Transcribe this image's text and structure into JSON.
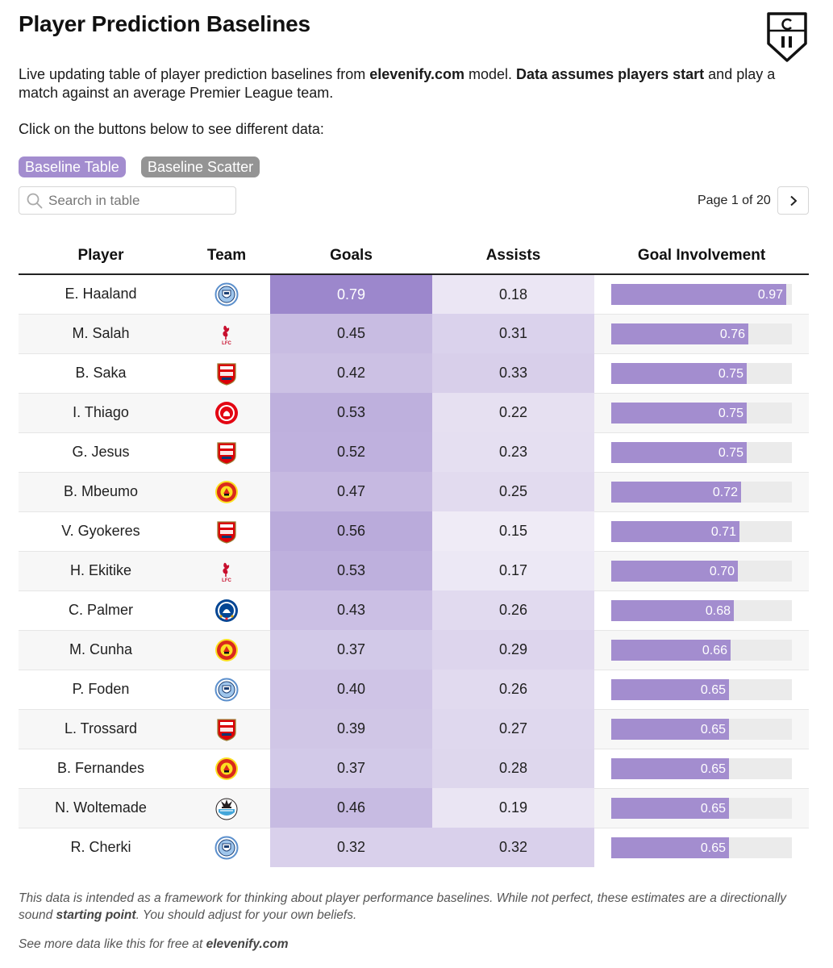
{
  "header": {
    "title": "Player Prediction Baselines",
    "description_1": "Live updating table of player prediction baselines from ",
    "description_site": "elevenify.com",
    "description_2": " model. ",
    "description_bold": "Data assumes players start",
    "description_3": " and play a match against an average Premier League team.",
    "prompt": "Click on the buttons below to see different data:"
  },
  "buttons": {
    "table_label": "Baseline Table",
    "scatter_label": "Baseline Scatter"
  },
  "search": {
    "placeholder": "Search in table"
  },
  "pagination": {
    "label": "Page 1 of 20"
  },
  "colors": {
    "accent": "#a38dcf",
    "scatter_button": "#949494",
    "heat_low": "#efebf6",
    "heat_high": "#9c87cc"
  },
  "columns": [
    "Player",
    "Team",
    "Goals",
    "Assists",
    "Goal Involvement"
  ],
  "rows": [
    {
      "player": "E. Haaland",
      "team": "Man City",
      "goals": 0.79,
      "assists": 0.18,
      "gi": 0.97
    },
    {
      "player": "M. Salah",
      "team": "Liverpool",
      "goals": 0.45,
      "assists": 0.31,
      "gi": 0.76
    },
    {
      "player": "B. Saka",
      "team": "Arsenal",
      "goals": 0.42,
      "assists": 0.33,
      "gi": 0.75
    },
    {
      "player": "I. Thiago",
      "team": "Brentford",
      "goals": 0.53,
      "assists": 0.22,
      "gi": 0.75
    },
    {
      "player": "G. Jesus",
      "team": "Arsenal",
      "goals": 0.52,
      "assists": 0.23,
      "gi": 0.75
    },
    {
      "player": "B. Mbeumo",
      "team": "Man United",
      "goals": 0.47,
      "assists": 0.25,
      "gi": 0.72
    },
    {
      "player": "V. Gyokeres",
      "team": "Arsenal",
      "goals": 0.56,
      "assists": 0.15,
      "gi": 0.71
    },
    {
      "player": "H. Ekitike",
      "team": "Liverpool",
      "goals": 0.53,
      "assists": 0.17,
      "gi": 0.7
    },
    {
      "player": "C. Palmer",
      "team": "Chelsea",
      "goals": 0.43,
      "assists": 0.26,
      "gi": 0.68
    },
    {
      "player": "M. Cunha",
      "team": "Man United",
      "goals": 0.37,
      "assists": 0.29,
      "gi": 0.66
    },
    {
      "player": "P. Foden",
      "team": "Man City",
      "goals": 0.4,
      "assists": 0.26,
      "gi": 0.65
    },
    {
      "player": "L. Trossard",
      "team": "Arsenal",
      "goals": 0.39,
      "assists": 0.27,
      "gi": 0.65
    },
    {
      "player": "B. Fernandes",
      "team": "Man United",
      "goals": 0.37,
      "assists": 0.28,
      "gi": 0.65
    },
    {
      "player": "N. Woltemade",
      "team": "Newcastle",
      "goals": 0.46,
      "assists": 0.19,
      "gi": 0.65
    },
    {
      "player": "R. Cherki",
      "team": "Man City",
      "goals": 0.32,
      "assists": 0.32,
      "gi": 0.65
    }
  ],
  "footnote": {
    "text_1": "This data is intended as a framework for thinking about player performance baselines. While not perfect, these estimates are a directionally sound ",
    "bold": "starting point",
    "text_2": ". You should adjust for your own beliefs."
  },
  "footer": {
    "text": "See more data like this for free at ",
    "site": "elevenify.com"
  }
}
